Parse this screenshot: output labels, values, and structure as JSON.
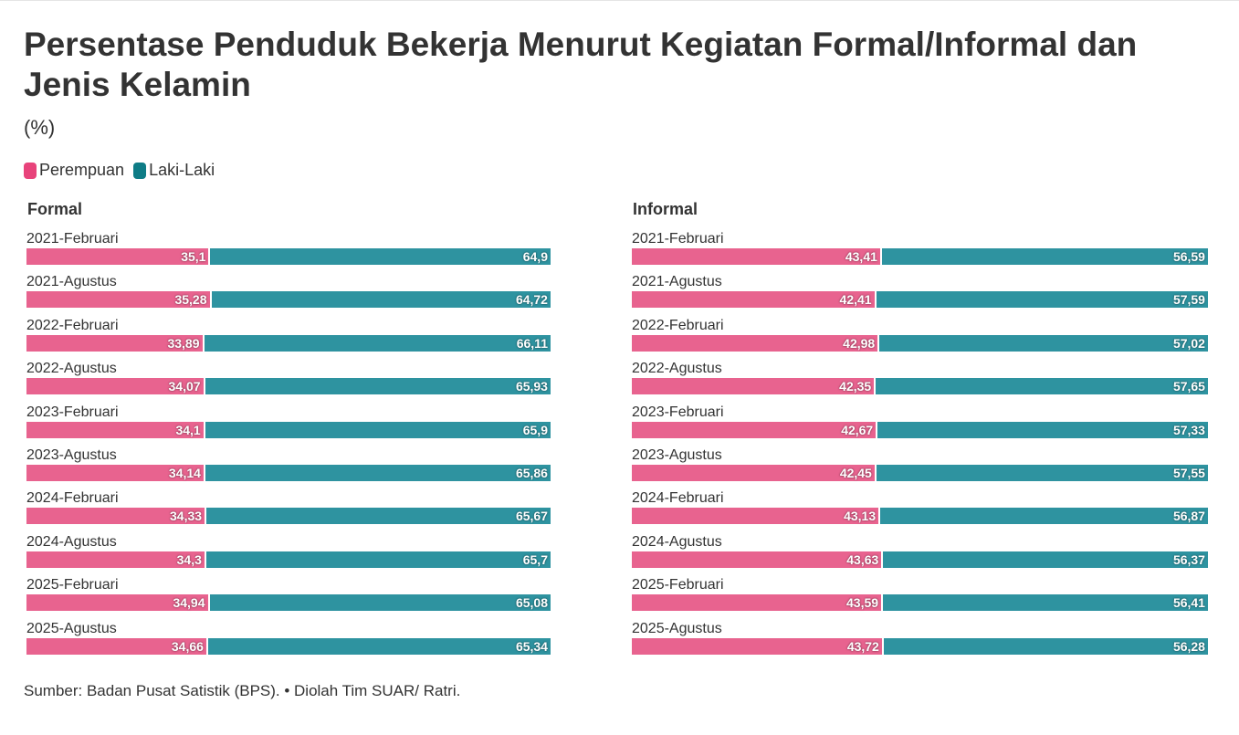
{
  "title": "Persentase Penduduk Bekerja Menurut Kegiatan Formal/Informal dan Jenis Kelamin",
  "subtitle": "(%)",
  "source": "Sumber: Badan Pusat Satistik (BPS). • Diolah Tim SUAR/ Ratri.",
  "colors": {
    "perempuan": "#e8638f",
    "laki": "#2e93a0",
    "legend_perempuan": "#e8437b",
    "legend_laki": "#0e7c86"
  },
  "chart_data": [
    {
      "type": "bar",
      "stacked": true,
      "orientation": "horizontal",
      "title": "Formal",
      "legend": [
        "Perempuan",
        "Laki-Laki"
      ],
      "categories": [
        "2021-Februari",
        "2021-Agustus",
        "2022-Februari",
        "2022-Agustus",
        "2023-Februari",
        "2023-Agustus",
        "2024-Februari",
        "2024-Agustus",
        "2025-Februari",
        "2025-Agustus"
      ],
      "series": [
        {
          "name": "Perempuan",
          "values": [
            35.1,
            35.28,
            33.89,
            34.07,
            34.1,
            34.14,
            34.33,
            34.3,
            34.94,
            34.66
          ],
          "labels": [
            "35,1",
            "35,28",
            "33,89",
            "34,07",
            "34,1",
            "34,14",
            "34,33",
            "34,3",
            "34,94",
            "34,66"
          ]
        },
        {
          "name": "Laki-Laki",
          "values": [
            64.9,
            64.72,
            66.11,
            65.93,
            65.9,
            65.86,
            65.67,
            65.7,
            65.08,
            65.34
          ],
          "labels": [
            "64,9",
            "64,72",
            "66,11",
            "65,93",
            "65,9",
            "65,86",
            "65,67",
            "65,7",
            "65,08",
            "65,34"
          ]
        }
      ],
      "xlim": [
        0,
        100
      ]
    },
    {
      "type": "bar",
      "stacked": true,
      "orientation": "horizontal",
      "title": "Informal",
      "legend": [
        "Perempuan",
        "Laki-Laki"
      ],
      "categories": [
        "2021-Februari",
        "2021-Agustus",
        "2022-Februari",
        "2022-Agustus",
        "2023-Februari",
        "2023-Agustus",
        "2024-Februari",
        "2024-Agustus",
        "2025-Februari",
        "2025-Agustus"
      ],
      "series": [
        {
          "name": "Perempuan",
          "values": [
            43.41,
            42.41,
            42.98,
            42.35,
            42.67,
            42.45,
            43.13,
            43.63,
            43.59,
            43.72
          ],
          "labels": [
            "43,41",
            "42,41",
            "42,98",
            "42,35",
            "42,67",
            "42,45",
            "43,13",
            "43,63",
            "43,59",
            "43,72"
          ]
        },
        {
          "name": "Laki-Laki",
          "values": [
            56.59,
            57.59,
            57.02,
            57.65,
            57.33,
            57.55,
            56.87,
            56.37,
            56.41,
            56.28
          ],
          "labels": [
            "56,59",
            "57,59",
            "57,02",
            "57,65",
            "57,33",
            "57,55",
            "56,87",
            "56,37",
            "56,41",
            "56,28"
          ]
        }
      ],
      "xlim": [
        0,
        100
      ]
    }
  ]
}
